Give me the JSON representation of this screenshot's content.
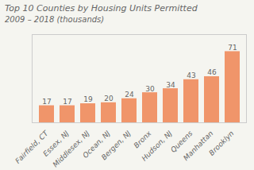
{
  "chart_data": {
    "type": "bar",
    "title": "Top 10 Counties by Housing Units Permitted",
    "subtitle": "2009 – 2018 (thousands)",
    "categories": [
      "Fairfield, CT",
      "Essex, NJ",
      "Middlesex, NJ",
      "Ocean, NJ",
      "Bergen, NJ",
      "Bronx",
      "Hudson, NJ",
      "Queens",
      "Manhattan",
      "Brooklyn"
    ],
    "values": [
      17,
      17,
      19,
      20,
      24,
      30,
      34,
      43,
      46,
      71
    ],
    "color": "#F0956A",
    "ylim": [
      0,
      88
    ],
    "grid": false,
    "data_labels": true,
    "tick_labels": "x"
  }
}
